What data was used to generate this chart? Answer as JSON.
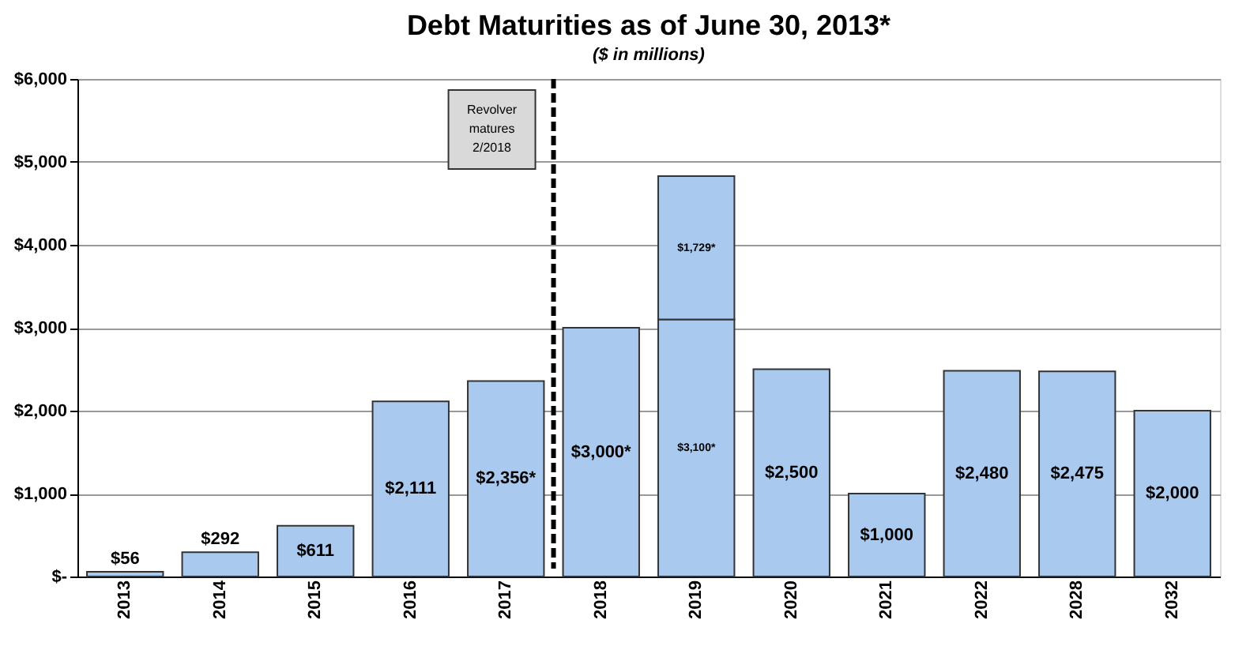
{
  "chart_data": {
    "type": "bar",
    "title": "Debt Maturities as of June 30, 2013*",
    "subtitle": "($ in millions)",
    "categories": [
      "2013",
      "2014",
      "2015",
      "2016",
      "2017",
      "2018",
      "2019",
      "2020",
      "2021",
      "2022",
      "2028",
      "2032"
    ],
    "stacked": true,
    "series": [
      {
        "color": "#a9caee",
        "values": [
          56,
          292,
          611,
          2111,
          2356,
          3000,
          3100,
          2500,
          1000,
          2480,
          2475,
          2000
        ],
        "value_labels": [
          "$56",
          "$292",
          "$611",
          "$2,111",
          "$2,356*",
          "$3,000*",
          "$3,100*",
          "$2,500",
          "$1,000",
          "$2,480",
          "$2,475",
          "$2,000"
        ]
      },
      {
        "color": "#a9caee",
        "values": [
          null,
          null,
          null,
          null,
          null,
          null,
          1729,
          null,
          null,
          null,
          null,
          null
        ],
        "value_labels": [
          null,
          null,
          null,
          null,
          null,
          null,
          "$1,729*",
          null,
          null,
          null,
          null,
          null
        ]
      }
    ],
    "ylim": [
      0,
      6000
    ],
    "yticks": [
      {
        "value": 0,
        "label": "$-"
      },
      {
        "value": 1000,
        "label": "$1,000"
      },
      {
        "value": 2000,
        "label": "$2,000"
      },
      {
        "value": 3000,
        "label": "$3,000"
      },
      {
        "value": 4000,
        "label": "$4,000"
      },
      {
        "value": 5000,
        "label": "$5,000"
      },
      {
        "value": 6000,
        "label": "$6,000"
      }
    ],
    "ref_lines": [
      {
        "axis": "x",
        "value": "2018",
        "label": "Revolver matures 2/2018",
        "line_style": "dashed",
        "color": "#000000"
      }
    ],
    "grid": "y",
    "legend": false
  }
}
